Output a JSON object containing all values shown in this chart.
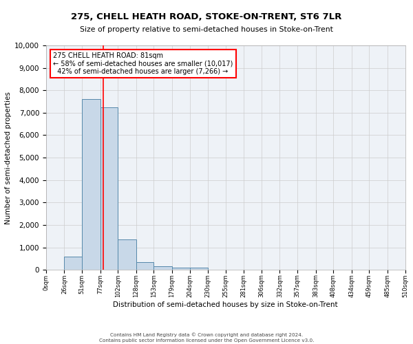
{
  "title": "275, CHELL HEATH ROAD, STOKE-ON-TRENT, ST6 7LR",
  "subtitle": "Size of property relative to semi-detached houses in Stoke-on-Trent",
  "xlabel": "Distribution of semi-detached houses by size in Stoke-on-Trent",
  "ylabel": "Number of semi-detached properties",
  "bin_edges": [
    0,
    26,
    51,
    77,
    102,
    128,
    153,
    179,
    204,
    230,
    255,
    281,
    306,
    332,
    357,
    383,
    408,
    434,
    459,
    485,
    510
  ],
  "bin_labels": [
    "0sqm",
    "26sqm",
    "51sqm",
    "77sqm",
    "102sqm",
    "128sqm",
    "153sqm",
    "179sqm",
    "204sqm",
    "230sqm",
    "255sqm",
    "281sqm",
    "306sqm",
    "332sqm",
    "357sqm",
    "383sqm",
    "408sqm",
    "434sqm",
    "459sqm",
    "485sqm",
    "510sqm"
  ],
  "bar_heights": [
    0,
    600,
    7600,
    7250,
    1350,
    350,
    150,
    100,
    100,
    0,
    0,
    0,
    0,
    0,
    0,
    0,
    0,
    0,
    0,
    0
  ],
  "bar_color": "#c8d8e8",
  "bar_edge_color": "#5588aa",
  "property_size": 81,
  "property_label": "275 CHELL HEATH ROAD: 81sqm",
  "pct_smaller": 58,
  "pct_larger": 42,
  "n_smaller": "10,017",
  "n_larger": "7,266",
  "vline_color": "red",
  "annotation_box_color": "red",
  "ylim": [
    0,
    10000
  ],
  "yticks": [
    0,
    1000,
    2000,
    3000,
    4000,
    5000,
    6000,
    7000,
    8000,
    9000,
    10000
  ],
  "grid_color": "#cccccc",
  "background_color": "#eef2f7",
  "footer": "Contains HM Land Registry data © Crown copyright and database right 2024.\nContains public sector information licensed under the Open Government Licence v3.0."
}
